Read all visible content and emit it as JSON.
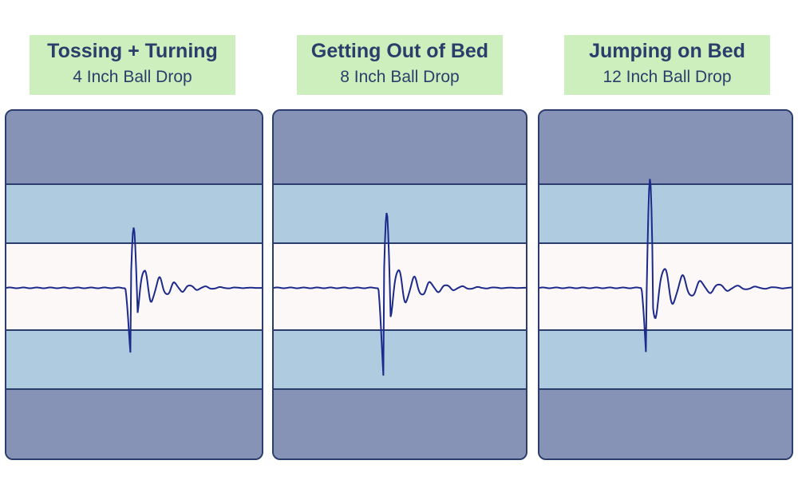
{
  "chart_data": [
    {
      "type": "line",
      "title": "Tossing + Turning",
      "subtitle": "4 Inch Ball Drop",
      "ylim": [
        -1,
        1
      ],
      "onset": 0.46,
      "peak_up": 0.57,
      "peak_down": -0.69,
      "decay": 5.5,
      "freq": 17,
      "series": [
        {
          "values": []
        }
      ]
    },
    {
      "type": "line",
      "title": "Getting Out of Bed",
      "subtitle": "8 Inch Ball Drop",
      "ylim": [
        -1,
        1
      ],
      "onset": 0.41,
      "peak_up": 0.72,
      "peak_down": -0.96,
      "decay": 5.0,
      "freq": 16,
      "series": [
        {
          "values": []
        }
      ]
    },
    {
      "type": "line",
      "title": "Jumping on Bed",
      "subtitle": "12 Inch Ball Drop",
      "ylim": [
        -1,
        1
      ],
      "onset": 0.4,
      "peak_up": 1.08,
      "peak_down": -0.83,
      "decay": 4.0,
      "freq": 14,
      "series": [
        {
          "values": []
        }
      ]
    }
  ],
  "colors": {
    "line": "#1c2a8c",
    "label_bg": "#cdeebd",
    "title": "#2b3e6b"
  }
}
